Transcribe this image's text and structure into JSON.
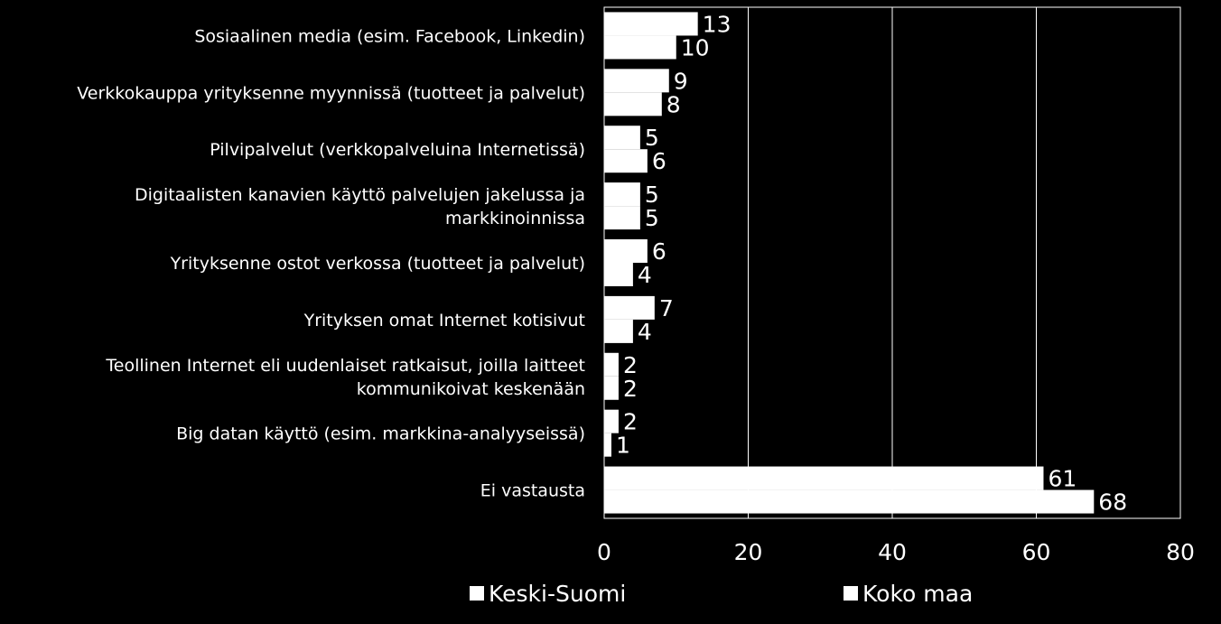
{
  "chart_data": {
    "type": "bar",
    "orientation": "horizontal",
    "categories": [
      [
        "Sosiaalinen media (esim. Facebook, Linkedin)"
      ],
      [
        "Verkkokauppa yrityksenne myynnissä (tuotteet ja palvelut)"
      ],
      [
        "Pilvipalvelut  (verkkopalveluina Internetissä)"
      ],
      [
        "Digitaalisten kanavien käyttö palvelujen jakelussa ja",
        "markkinoinnissa"
      ],
      [
        "Yrityksenne ostot verkossa (tuotteet ja palvelut)"
      ],
      [
        "Yrityksen omat Internet kotisivut"
      ],
      [
        "Teollinen Internet eli uudenlaiset ratkaisut, joilla laitteet",
        "kommunikoivat keskenään"
      ],
      [
        "Big datan käyttö (esim. markkina-analyyseissä)"
      ],
      [
        "Ei vastausta"
      ]
    ],
    "series": [
      {
        "name": "Keski-Suomi",
        "values": [
          13,
          9,
          5,
          5,
          6,
          7,
          2,
          2,
          61
        ]
      },
      {
        "name": "Koko maa",
        "values": [
          10,
          8,
          6,
          5,
          4,
          4,
          2,
          1,
          68
        ]
      }
    ],
    "xlim": [
      0,
      80
    ],
    "xticks": [
      0,
      20,
      40,
      60,
      80
    ],
    "grid": true,
    "legend_position": "bottom",
    "colors": {
      "background": "#000000",
      "bar": "#ffffff",
      "text": "#ffffff",
      "grid": "#ffffff"
    }
  }
}
